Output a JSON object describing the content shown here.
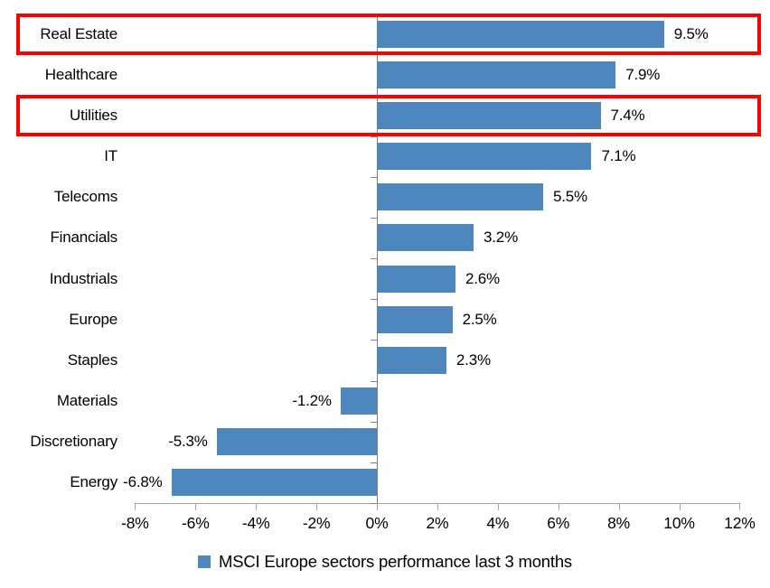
{
  "chart_data": {
    "type": "bar",
    "orientation": "horizontal",
    "title": "",
    "categories": [
      "Real Estate",
      "Healthcare",
      "Utilities",
      "IT",
      "Telecoms",
      "Financials",
      "Industrials",
      "Europe",
      "Staples",
      "Materials",
      "Discretionary",
      "Energy"
    ],
    "values": [
      9.5,
      7.9,
      7.4,
      7.1,
      5.5,
      3.2,
      2.6,
      2.5,
      2.3,
      -1.2,
      -5.3,
      -6.8
    ],
    "value_labels": [
      "9.5%",
      "7.9%",
      "7.4%",
      "7.1%",
      "5.5%",
      "3.2%",
      "2.6%",
      "2.5%",
      "2.3%",
      "-1.2%",
      "-5.3%",
      "-6.8%"
    ],
    "x_tick_labels": [
      "-8%",
      "-6%",
      "-4%",
      "-2%",
      "0%",
      "2%",
      "4%",
      "6%",
      "8%",
      "10%",
      "12%"
    ],
    "xlim": [
      -8,
      12
    ],
    "grid": "off",
    "legend": {
      "label": "MSCI Europe sectors performance last 3 months",
      "position": "bottom-center"
    },
    "colors": {
      "bar": "#4e86be",
      "highlight_border": "#ff0000",
      "value_axis_line": "#a6a6a6",
      "category_axis_line": "#808080",
      "text": "#000000"
    },
    "highlighted_categories": [
      "Real Estate",
      "Utilities"
    ]
  }
}
